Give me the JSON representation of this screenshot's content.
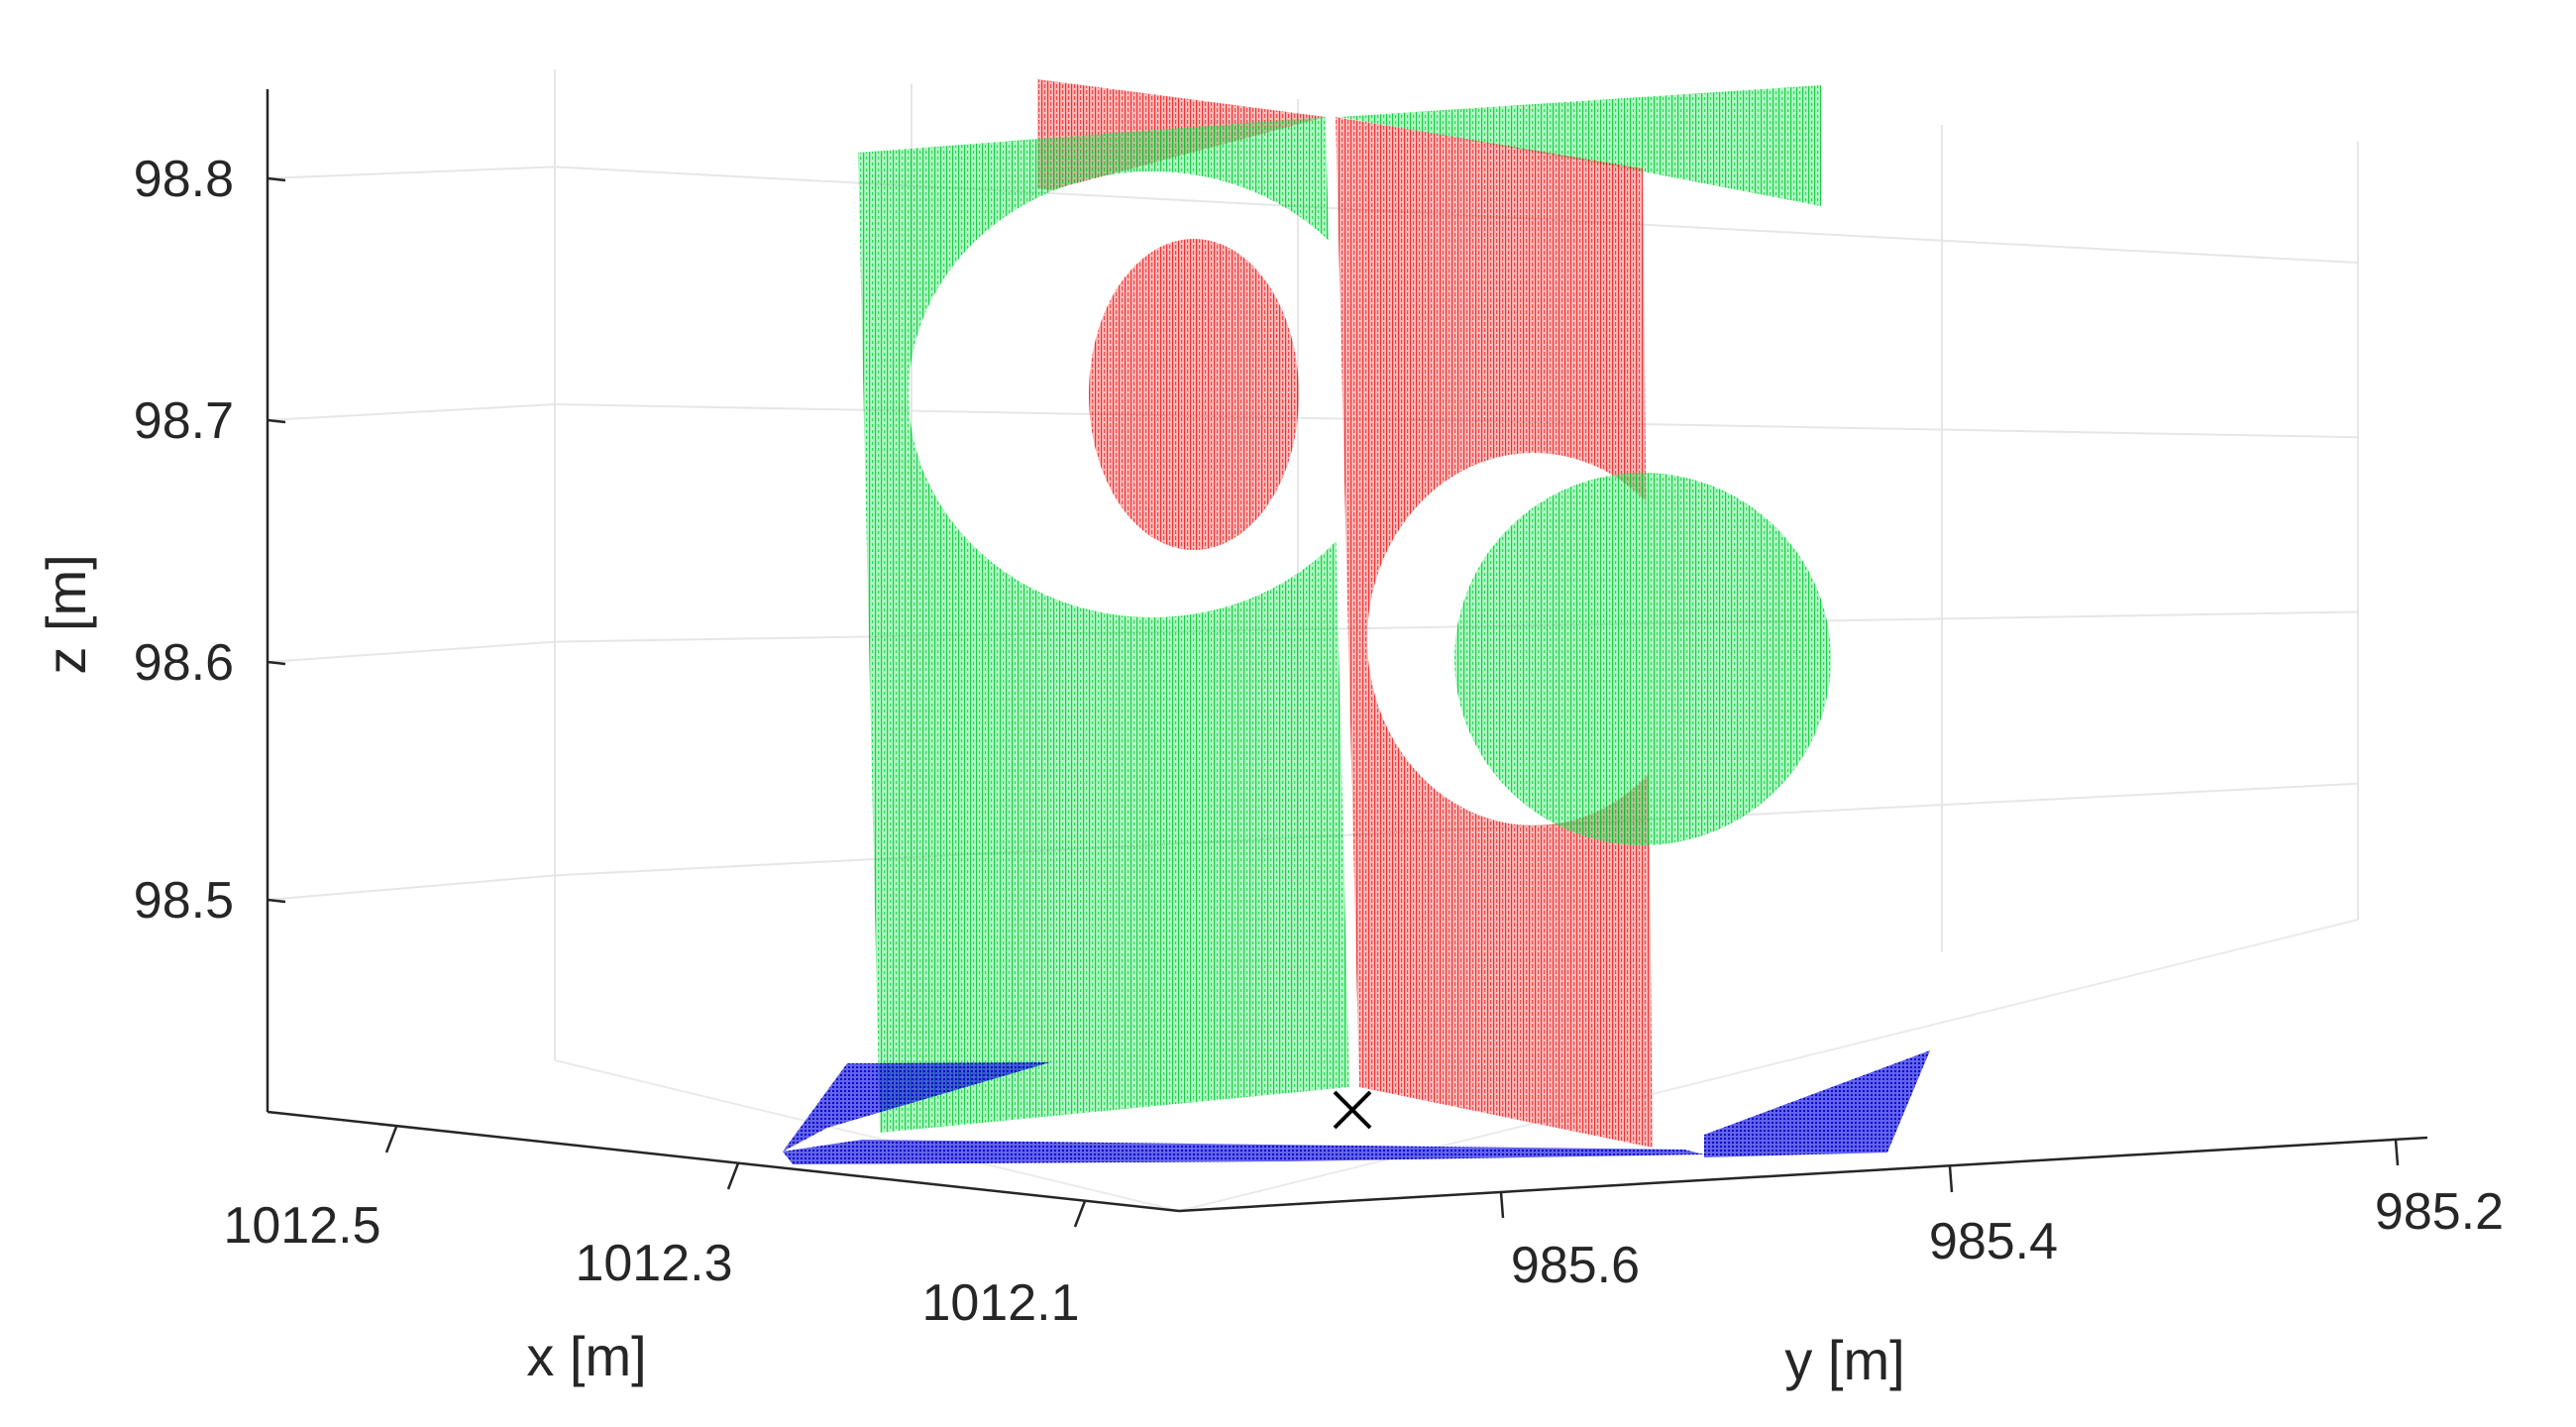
{
  "chart_data": {
    "type": "scatter",
    "title": "",
    "projection": "3d",
    "xlabel": "x [m]",
    "ylabel": "y [m]",
    "zlabel": "z [m]",
    "xlim": [
      1012.0,
      1012.5
    ],
    "ylim": [
      985.2,
      985.7
    ],
    "zlim": [
      98.42,
      98.84
    ],
    "x_ticks": [
      "1012.5",
      "1012.3",
      "1012.1"
    ],
    "y_ticks": [
      "985.6",
      "985.4",
      "985.2"
    ],
    "z_ticks": [
      "98.8",
      "98.7",
      "98.6",
      "98.5"
    ],
    "grid": true,
    "legend": "none",
    "colors": {
      "green": "#00e040",
      "red": "#f01010",
      "blue": "#1010e0",
      "marker": "#000000"
    },
    "series": [
      {
        "color": "green",
        "surface": "vertical plane with circular cutout",
        "z_range": [
          98.44,
          98.84
        ]
      },
      {
        "color": "red",
        "surface": "vertical plane with circular cutout",
        "z_range": [
          98.44,
          98.84
        ]
      },
      {
        "color": "blue",
        "surface": "ground plane",
        "z_range": [
          98.43,
          98.45
        ]
      }
    ],
    "marker": {
      "symbol": "x",
      "z": 98.44
    }
  }
}
